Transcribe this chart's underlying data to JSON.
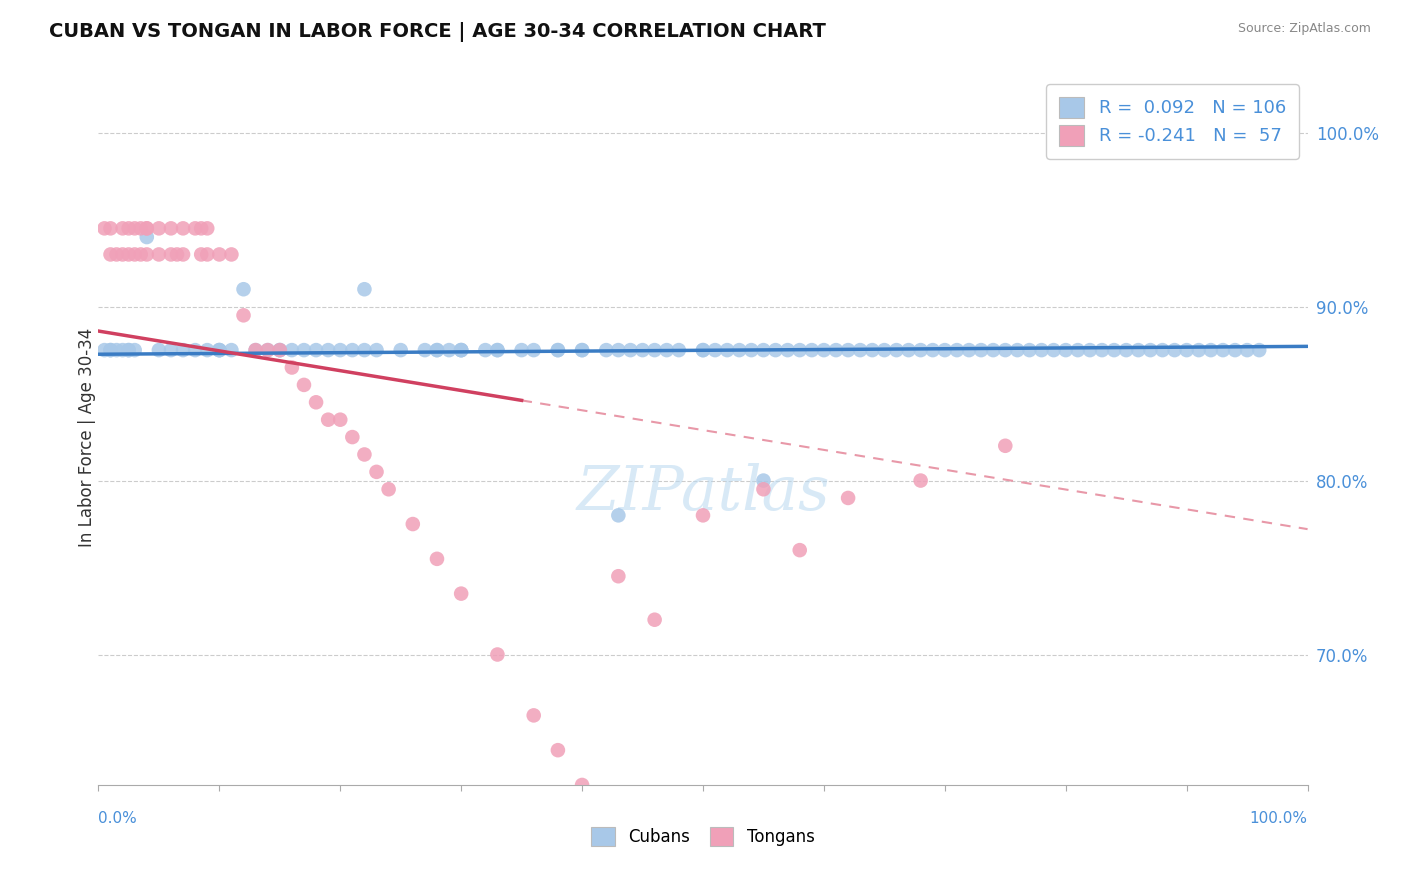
{
  "title": "CUBAN VS TONGAN IN LABOR FORCE | AGE 30-34 CORRELATION CHART",
  "source_text": "Source: ZipAtlas.com",
  "ylabel": "In Labor Force | Age 30-34",
  "ylabel_right_ticks": [
    "70.0%",
    "80.0%",
    "90.0%",
    "100.0%"
  ],
  "ylabel_right_values": [
    0.7,
    0.8,
    0.9,
    1.0
  ],
  "xmin": 0.0,
  "xmax": 1.0,
  "ymin": 0.625,
  "ymax": 1.025,
  "cuban_color": "#a8c8e8",
  "tongan_color": "#f0a0b8",
  "cuban_R": 0.092,
  "cuban_N": 106,
  "tongan_R": -0.241,
  "tongan_N": 57,
  "legend_label_cuban": "Cubans",
  "legend_label_tongan": "Tongans",
  "cuban_line_color": "#3a7cc4",
  "tongan_line_solid_color": "#d04060",
  "tongan_line_dash_color": "#e898a8",
  "watermark_text": "ZIPatlas",
  "cuban_points_x": [
    0.005,
    0.01,
    0.01,
    0.015,
    0.02,
    0.025,
    0.025,
    0.03,
    0.04,
    0.05,
    0.06,
    0.07,
    0.08,
    0.09,
    0.1,
    0.1,
    0.11,
    0.12,
    0.13,
    0.14,
    0.15,
    0.16,
    0.17,
    0.18,
    0.19,
    0.2,
    0.21,
    0.22,
    0.23,
    0.25,
    0.27,
    0.28,
    0.29,
    0.3,
    0.3,
    0.32,
    0.33,
    0.33,
    0.35,
    0.36,
    0.38,
    0.4,
    0.4,
    0.42,
    0.43,
    0.44,
    0.45,
    0.46,
    0.47,
    0.48,
    0.5,
    0.5,
    0.51,
    0.52,
    0.53,
    0.54,
    0.55,
    0.56,
    0.57,
    0.58,
    0.59,
    0.6,
    0.61,
    0.62,
    0.63,
    0.64,
    0.65,
    0.66,
    0.67,
    0.68,
    0.69,
    0.7,
    0.71,
    0.72,
    0.73,
    0.74,
    0.75,
    0.76,
    0.77,
    0.78,
    0.79,
    0.8,
    0.81,
    0.82,
    0.83,
    0.84,
    0.85,
    0.86,
    0.87,
    0.88,
    0.89,
    0.9,
    0.91,
    0.92,
    0.93,
    0.94,
    0.95,
    0.96,
    0.38,
    0.22,
    0.3,
    0.15,
    0.1,
    0.28,
    0.43,
    0.55
  ],
  "cuban_points_y": [
    0.875,
    0.875,
    0.875,
    0.875,
    0.875,
    0.875,
    0.875,
    0.875,
    0.94,
    0.875,
    0.875,
    0.875,
    0.875,
    0.875,
    0.875,
    0.875,
    0.875,
    0.91,
    0.875,
    0.875,
    0.875,
    0.875,
    0.875,
    0.875,
    0.875,
    0.875,
    0.875,
    0.875,
    0.875,
    0.875,
    0.875,
    0.875,
    0.875,
    0.875,
    0.875,
    0.875,
    0.875,
    0.875,
    0.875,
    0.875,
    0.875,
    0.875,
    0.875,
    0.875,
    0.875,
    0.875,
    0.875,
    0.875,
    0.875,
    0.875,
    0.875,
    0.875,
    0.875,
    0.875,
    0.875,
    0.875,
    0.875,
    0.875,
    0.875,
    0.875,
    0.875,
    0.875,
    0.875,
    0.875,
    0.875,
    0.875,
    0.875,
    0.875,
    0.875,
    0.875,
    0.875,
    0.875,
    0.875,
    0.875,
    0.875,
    0.875,
    0.875,
    0.875,
    0.875,
    0.875,
    0.875,
    0.875,
    0.875,
    0.875,
    0.875,
    0.875,
    0.875,
    0.875,
    0.875,
    0.875,
    0.875,
    0.875,
    0.875,
    0.875,
    0.875,
    0.875,
    0.875,
    0.875,
    0.875,
    0.91,
    0.875,
    0.875,
    0.875,
    0.875,
    0.78,
    0.8
  ],
  "tongan_points_x": [
    0.005,
    0.01,
    0.01,
    0.015,
    0.02,
    0.02,
    0.025,
    0.025,
    0.03,
    0.03,
    0.035,
    0.035,
    0.04,
    0.04,
    0.04,
    0.05,
    0.05,
    0.06,
    0.06,
    0.065,
    0.07,
    0.07,
    0.08,
    0.085,
    0.085,
    0.09,
    0.09,
    0.1,
    0.11,
    0.12,
    0.13,
    0.14,
    0.15,
    0.16,
    0.17,
    0.18,
    0.19,
    0.2,
    0.21,
    0.22,
    0.23,
    0.24,
    0.26,
    0.28,
    0.3,
    0.33,
    0.36,
    0.38,
    0.4,
    0.43,
    0.46,
    0.5,
    0.55,
    0.58,
    0.62,
    0.68,
    0.75
  ],
  "tongan_points_y": [
    0.945,
    0.93,
    0.945,
    0.93,
    0.93,
    0.945,
    0.93,
    0.945,
    0.945,
    0.93,
    0.93,
    0.945,
    0.945,
    0.945,
    0.93,
    0.93,
    0.945,
    0.93,
    0.945,
    0.93,
    0.945,
    0.93,
    0.945,
    0.945,
    0.93,
    0.93,
    0.945,
    0.93,
    0.93,
    0.895,
    0.875,
    0.875,
    0.875,
    0.865,
    0.855,
    0.845,
    0.835,
    0.835,
    0.825,
    0.815,
    0.805,
    0.795,
    0.775,
    0.755,
    0.735,
    0.7,
    0.665,
    0.645,
    0.625,
    0.745,
    0.72,
    0.78,
    0.795,
    0.76,
    0.79,
    0.8,
    0.82
  ]
}
